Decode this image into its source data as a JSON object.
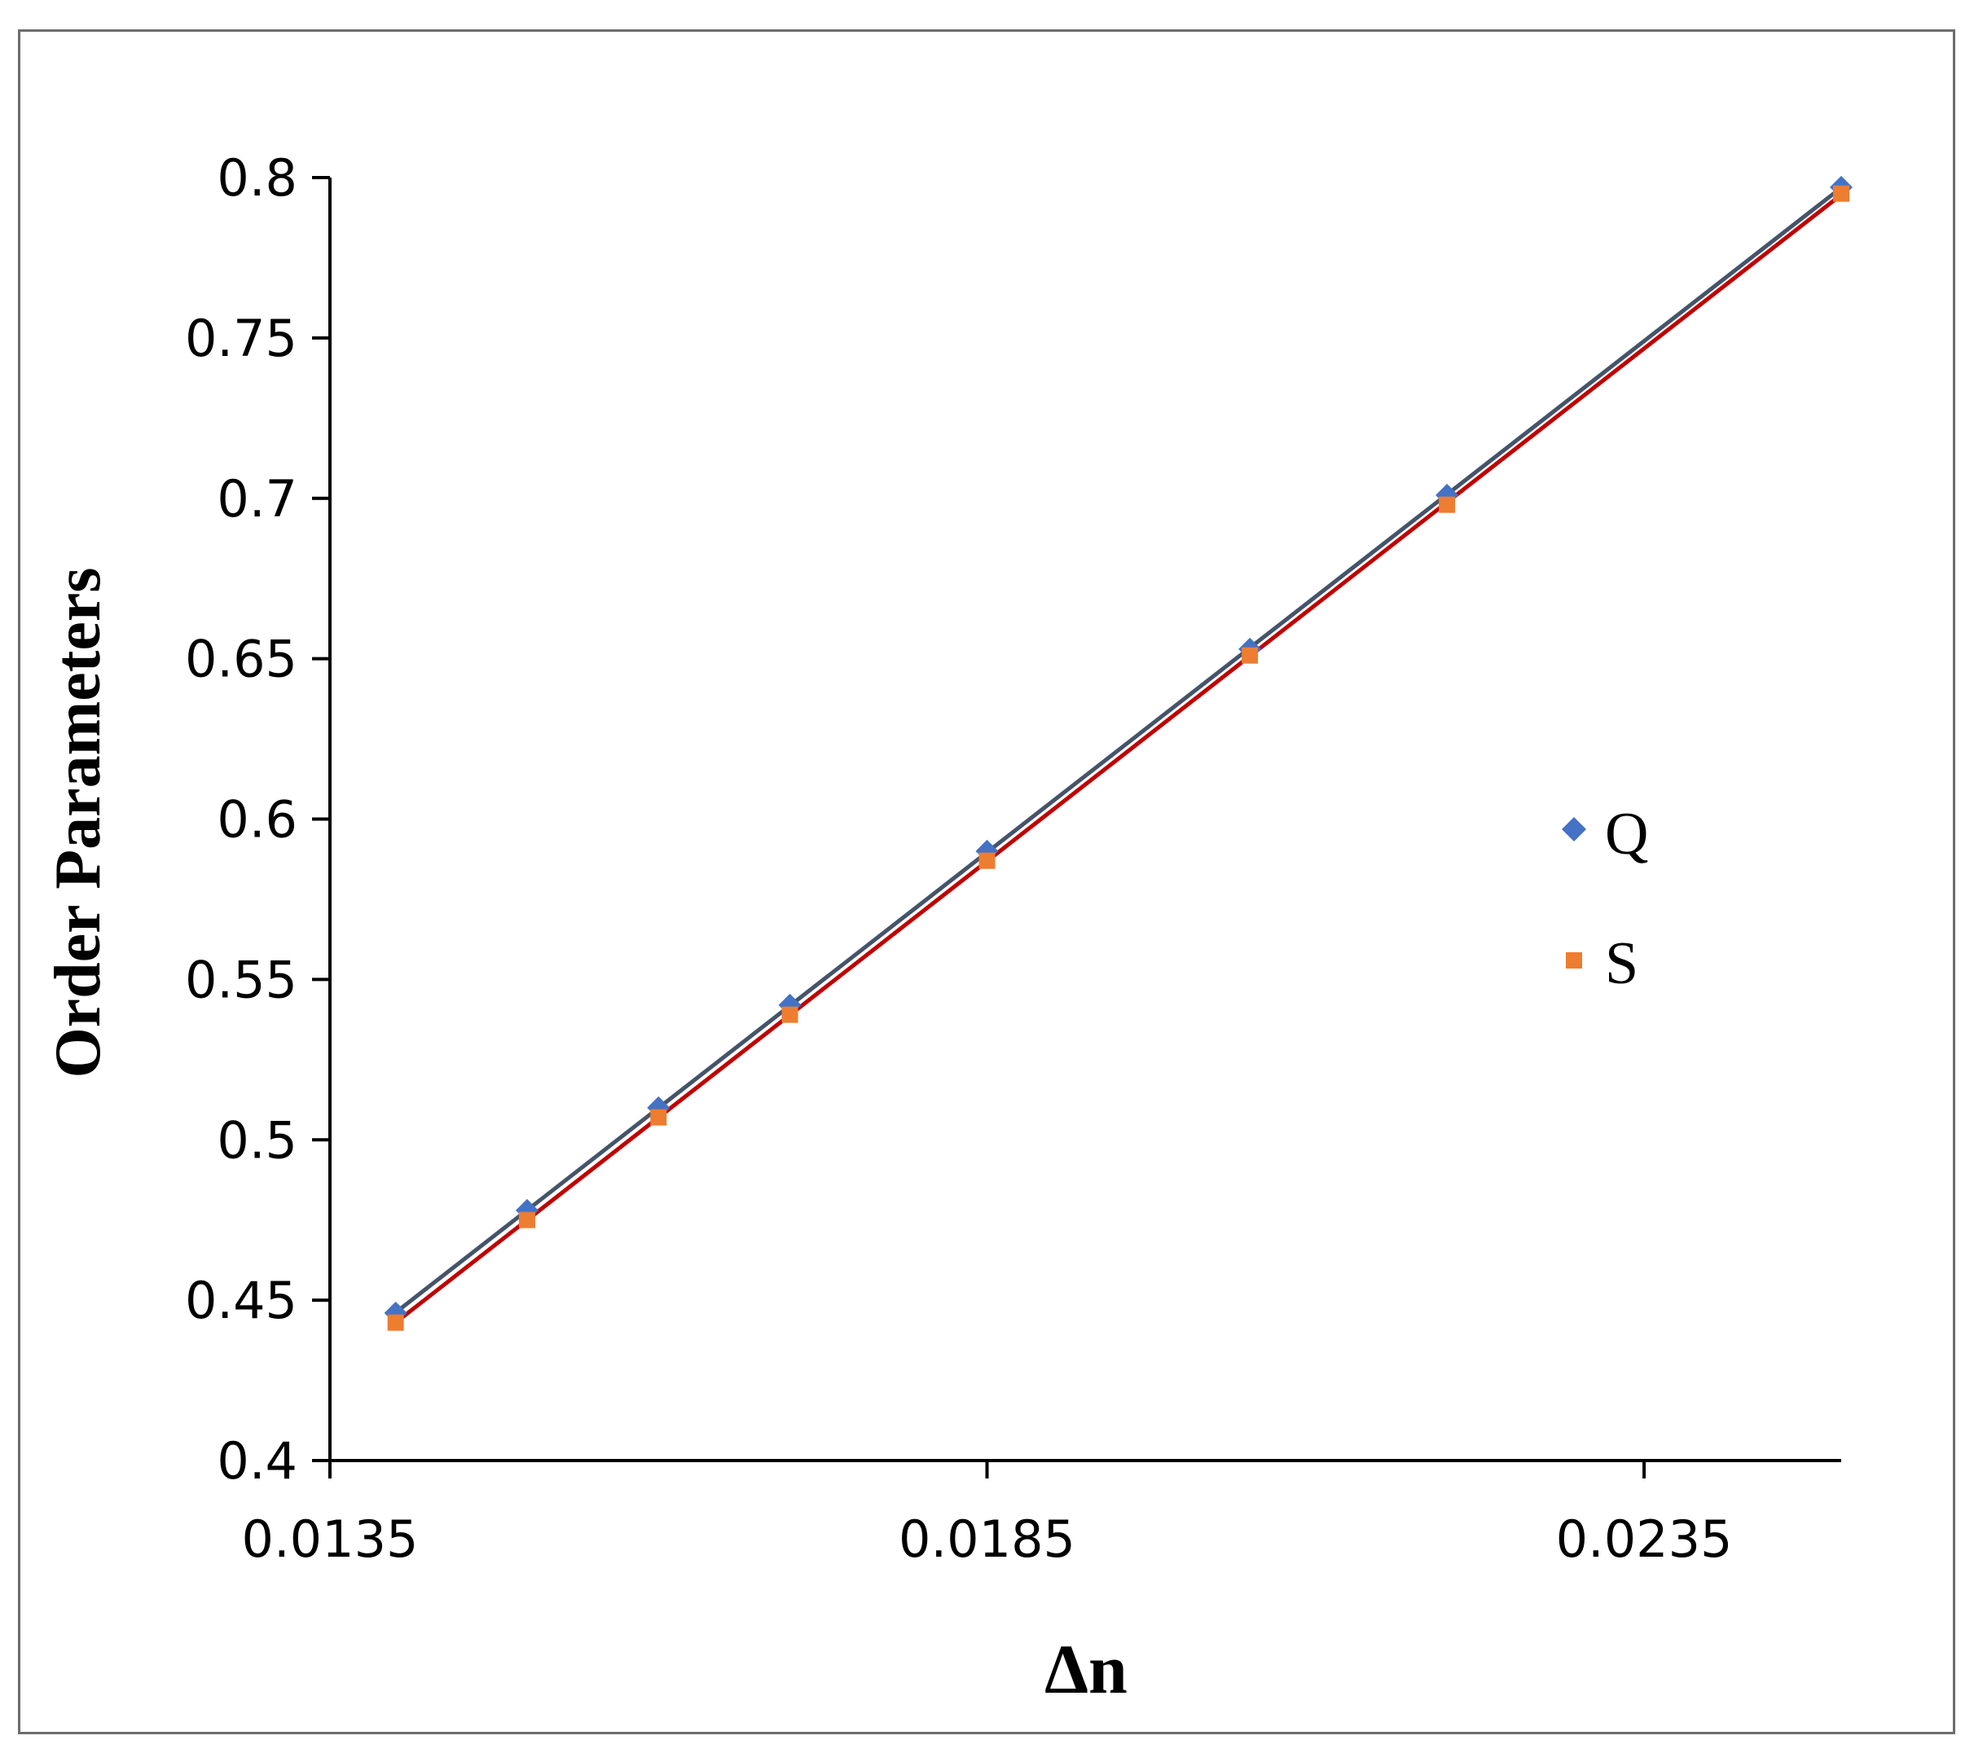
{
  "chart_data": {
    "type": "scatter",
    "xlabel": "Δn",
    "ylabel": "Order Parameters",
    "xlim": [
      0.0135,
      0.025
    ],
    "ylim": [
      0.4,
      0.8
    ],
    "x_ticks": [
      "0.0135",
      "0.0185",
      "0.0235"
    ],
    "x_tick_values": [
      0.0135,
      0.0185,
      0.0235
    ],
    "y_ticks": [
      "0.4",
      "0.45",
      "0.5",
      "0.55",
      "0.6",
      "0.65",
      "0.7",
      "0.75",
      "0.8"
    ],
    "y_tick_values": [
      0.4,
      0.45,
      0.5,
      0.55,
      0.6,
      0.65,
      0.7,
      0.75,
      0.8
    ],
    "grid": false,
    "legend_position": "right",
    "series": [
      {
        "name": "Q",
        "marker": "diamond",
        "color": "#4472C4",
        "trendline_color": "#44546A",
        "x": [
          0.014,
          0.015,
          0.016,
          0.017,
          0.0185,
          0.0205,
          0.022,
          0.025
        ],
        "y": [
          0.446,
          0.478,
          0.51,
          0.542,
          0.59,
          0.653,
          0.701,
          0.797
        ]
      },
      {
        "name": "S",
        "marker": "square",
        "color": "#ED7D31",
        "trendline_color": "#C00000",
        "x": [
          0.014,
          0.015,
          0.016,
          0.017,
          0.0185,
          0.0205,
          0.022,
          0.025
        ],
        "y": [
          0.443,
          0.475,
          0.507,
          0.539,
          0.587,
          0.651,
          0.698,
          0.795
        ]
      }
    ]
  }
}
